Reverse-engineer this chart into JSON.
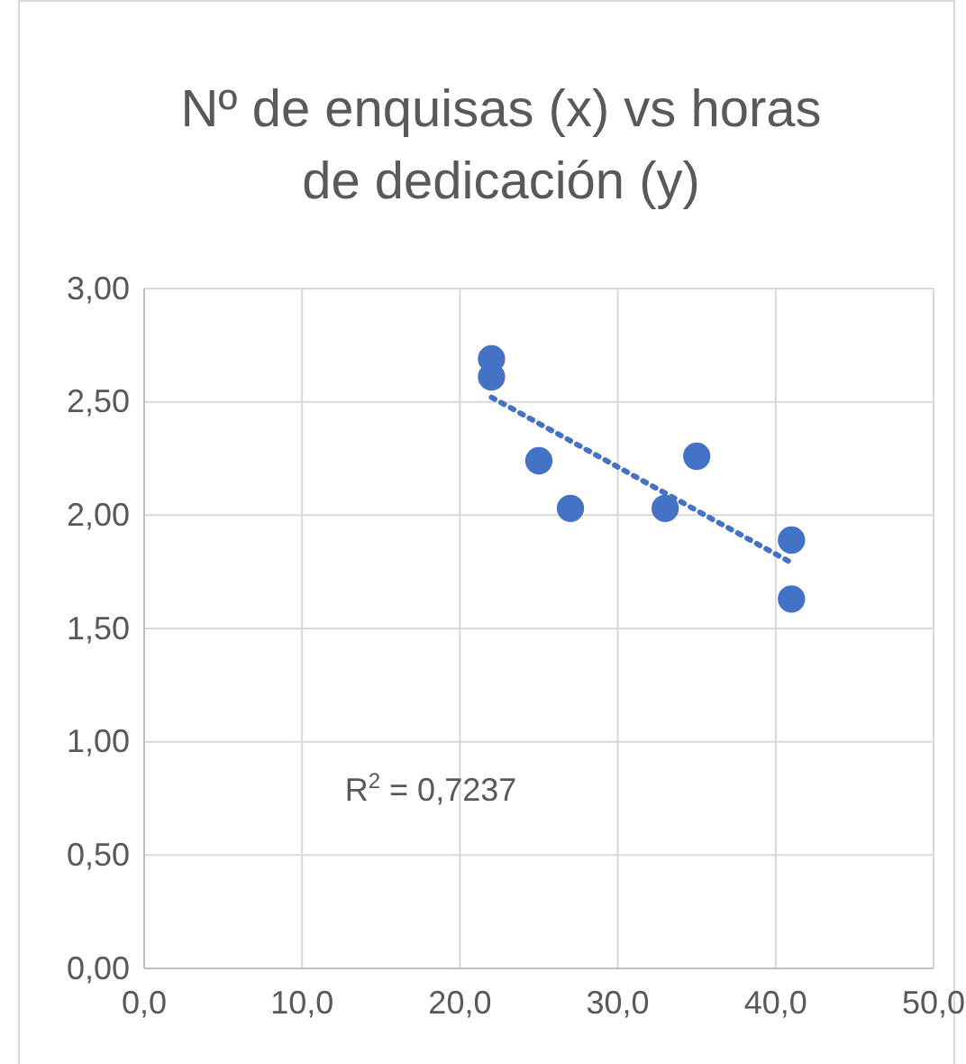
{
  "chart_data": {
    "type": "scatter",
    "title": "Nº de enquisas (x) vs horas de dedicación (y)",
    "series": [
      {
        "color": "#4472c4",
        "marker": "circle",
        "x": [
          22,
          22,
          25,
          27,
          33,
          35,
          41,
          41
        ],
        "values": [
          2.69,
          2.61,
          2.24,
          2.03,
          2.03,
          2.26,
          1.89,
          1.63
        ]
      },
      {
        "type": "line",
        "color": "#4472c4",
        "line_style": "dotted",
        "x": [
          22,
          41
        ],
        "values": [
          2.52,
          1.79
        ]
      }
    ],
    "annotations": [
      "R$^{2}$ = 0,7237"
    ],
    "xlim": [
      0,
      50
    ],
    "xticks": [
      {
        "value": 0,
        "label": "0,0"
      },
      {
        "value": 10,
        "label": "10,0"
      },
      {
        "value": 20,
        "label": "20,0"
      },
      {
        "value": 30,
        "label": "30,0"
      },
      {
        "value": 40,
        "label": "40,0"
      },
      {
        "value": 50,
        "label": "50,0"
      }
    ],
    "ylim": [
      0,
      3
    ],
    "yticks": [
      {
        "value": 0,
        "label": "0,00"
      },
      {
        "value": 0.5,
        "label": "0,50"
      },
      {
        "value": 1,
        "label": "1,00"
      },
      {
        "value": 1.5,
        "label": "1,50"
      },
      {
        "value": 2,
        "label": "2,00"
      },
      {
        "value": 2.5,
        "label": "2,50"
      },
      {
        "value": 3,
        "label": "3,00"
      }
    ],
    "grid": true
  }
}
